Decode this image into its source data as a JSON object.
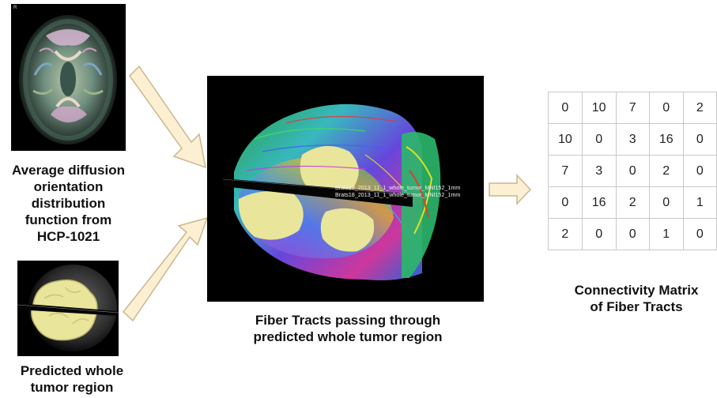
{
  "inputs": {
    "dti_caption": [
      "Average diffusion",
      "orientation",
      "distribution",
      "function from",
      "HCP-1021"
    ],
    "dti_corner_label": "R",
    "tumor_caption": [
      "Predicted whole",
      "tumor region"
    ]
  },
  "center": {
    "caption": [
      "Fiber Tracts passing through",
      "predicted whole tumor region"
    ],
    "overlay_labels": [
      "Brats18_2013_11_1_whole_tumor_MNI152_1mm",
      "Brats18_2013_11_1_whole_tumor_MNI152_1mm"
    ]
  },
  "output": {
    "caption": [
      "Connectivity Matrix",
      "of Fiber Tracts"
    ],
    "matrix": [
      [
        "0",
        "10",
        "7",
        "0",
        "2"
      ],
      [
        "10",
        "0",
        "3",
        "16",
        "0"
      ],
      [
        "7",
        "3",
        "0",
        "2",
        "0"
      ],
      [
        "0",
        "16",
        "2",
        "0",
        "1"
      ],
      [
        "2",
        "0",
        "0",
        "1",
        "0"
      ]
    ]
  },
  "colors": {
    "arrow_fill": "#fcefd2",
    "arrow_stroke": "#c9b78f",
    "tumor": "#e9e59a",
    "panel_bg": "#000000"
  }
}
